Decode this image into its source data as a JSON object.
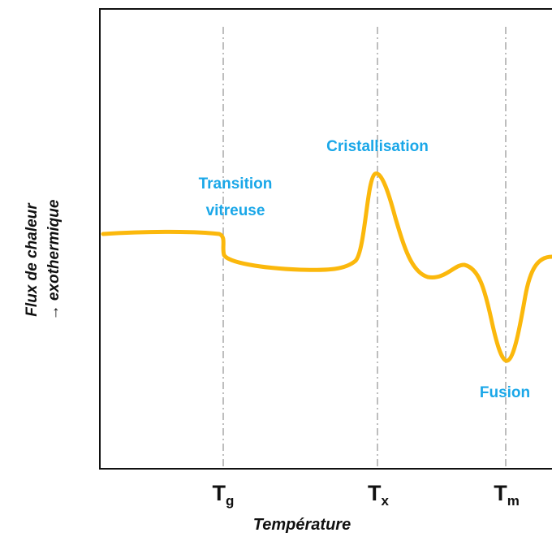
{
  "diagram": {
    "type": "dsc-thermogram",
    "x_axis_label": "Température",
    "y_axis_label_line1": "Flux de chaleur",
    "y_axis_label_line2": "→ exothermique",
    "markers": [
      {
        "symbol": "T",
        "subscript": "g"
      },
      {
        "symbol": "T",
        "subscript": "x"
      },
      {
        "symbol": "T",
        "subscript": "m"
      }
    ],
    "annotations": {
      "glass_transition_line1": "Transition",
      "glass_transition_line2": "vitreuse",
      "crystallization": "Cristallisation",
      "melting": "Fusion"
    },
    "colors": {
      "curve": "#fbb80c",
      "annotation": "#1aa7e8",
      "frame": "#111111",
      "guide": "#9a9a9a"
    }
  }
}
